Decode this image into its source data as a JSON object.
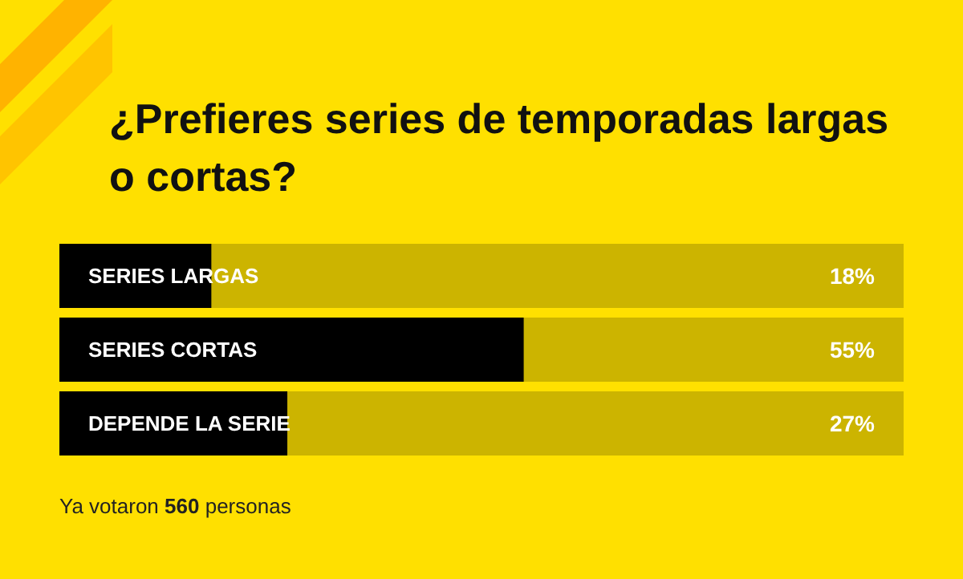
{
  "chart_data": {
    "type": "bar",
    "orientation": "horizontal",
    "title": "¿Prefieres series de temporadas largas o cortas?",
    "categories": [
      "SERIES LARGAS",
      "SERIES CORTAS",
      "DEPENDE LA SERIE"
    ],
    "values": [
      18,
      55,
      27
    ],
    "value_labels": [
      "18%",
      "55%",
      "27%"
    ],
    "color": "#000000",
    "xlim": [
      0,
      100
    ],
    "grid": false,
    "legend": false,
    "annotations": [
      "Ya votaron 560 personas"
    ]
  }
}
